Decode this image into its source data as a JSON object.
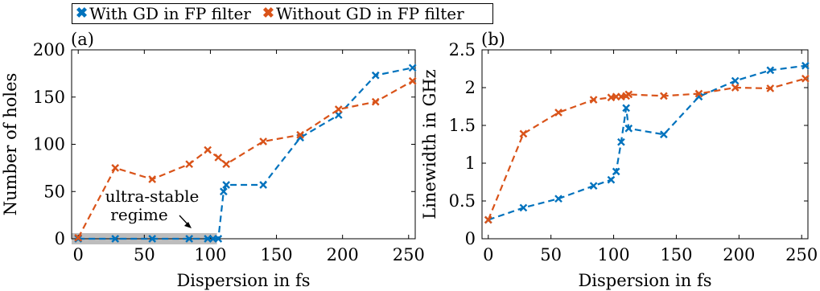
{
  "legend": {
    "items": [
      {
        "label": "With GD in FP filter",
        "color": "#0072BD",
        "marker": "x-icon"
      },
      {
        "label": "Without GD in FP filter",
        "color": "#D95319",
        "marker": "x-icon"
      }
    ]
  },
  "chart_data": [
    {
      "type": "line",
      "panel_label": "(a)",
      "xlabel": "Dispersion in fs",
      "ylabel": "Number of holes",
      "xlim": [
        -5,
        255
      ],
      "ylim": [
        0,
        200
      ],
      "xticks": [
        0,
        50,
        100,
        150,
        200,
        250
      ],
      "yticks": [
        0,
        50,
        100,
        150,
        200
      ],
      "grid": false,
      "annotation": {
        "text_lines": [
          "ultra-stable",
          "regime"
        ],
        "region_x": [
          -5,
          105
        ]
      },
      "series": [
        {
          "name": "With GD in FP filter",
          "color": "#0072BD",
          "x": [
            0,
            28,
            56,
            84,
            98,
            102,
            106,
            110,
            112,
            140,
            168,
            197,
            225,
            253
          ],
          "y": [
            0,
            0,
            0,
            0,
            0,
            0,
            0,
            50,
            57,
            57,
            107,
            131,
            173,
            181
          ]
        },
        {
          "name": "Without GD in FP filter",
          "color": "#D95319",
          "x": [
            0,
            28,
            56,
            84,
            98,
            106,
            112,
            140,
            168,
            197,
            225,
            253
          ],
          "y": [
            1,
            75,
            63,
            79,
            94,
            86,
            79,
            103,
            110,
            137,
            145,
            167
          ]
        }
      ]
    },
    {
      "type": "line",
      "panel_label": "(b)",
      "xlabel": "Dispersion in fs",
      "ylabel": "Linewidth in GHz",
      "xlim": [
        -5,
        255
      ],
      "ylim": [
        0,
        2.5
      ],
      "xticks": [
        0,
        50,
        100,
        150,
        200,
        250
      ],
      "yticks": [
        0,
        0.5,
        1,
        1.5,
        2,
        2.5
      ],
      "grid": false,
      "series": [
        {
          "name": "With GD in FP filter",
          "color": "#0072BD",
          "x": [
            0,
            28,
            56,
            84,
            98,
            102,
            106,
            110,
            112,
            140,
            168,
            197,
            225,
            253
          ],
          "y": [
            0.25,
            0.41,
            0.53,
            0.7,
            0.78,
            0.89,
            1.28,
            1.73,
            1.46,
            1.38,
            1.88,
            2.09,
            2.23,
            2.29
          ]
        },
        {
          "name": "Without GD in FP filter",
          "color": "#D95319",
          "x": [
            0,
            28,
            56,
            84,
            98,
            102,
            106,
            110,
            112,
            140,
            168,
            197,
            225,
            253
          ],
          "y": [
            0.25,
            1.39,
            1.67,
            1.84,
            1.87,
            1.88,
            1.88,
            1.89,
            1.91,
            1.89,
            1.92,
            2.0,
            1.99,
            2.12
          ]
        }
      ]
    }
  ]
}
